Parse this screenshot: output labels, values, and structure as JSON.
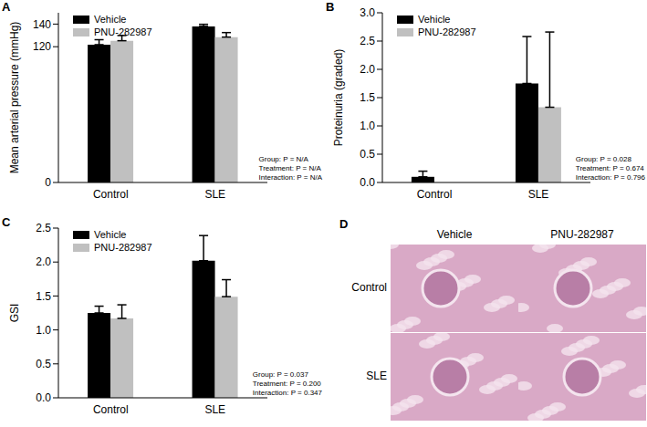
{
  "chart_data": [
    {
      "type": "bar",
      "panel_label": "A",
      "y_label": "Mean arterial pressure (mmHg)",
      "categories": [
        "Control",
        "SLE"
      ],
      "series": [
        {
          "name": "Vehicle",
          "color": "#000000",
          "values": [
            121.8,
            138.0
          ],
          "errors": [
            4.4,
            1.8
          ]
        },
        {
          "name": "PNU-282987",
          "color": "#c0c0c0",
          "values": [
            125.3,
            128.5
          ],
          "errors": [
            4.6,
            4.0
          ]
        }
      ],
      "ylim": [
        0,
        150
      ],
      "yticks": [
        0,
        120,
        140
      ],
      "annotations": [
        "Group: P = N/A",
        "Treatment: P = N/A",
        "Interaction: P = N/A"
      ]
    },
    {
      "type": "bar",
      "panel_label": "B",
      "y_label": "Proteinuria (graded)",
      "categories": [
        "Control",
        "SLE"
      ],
      "series": [
        {
          "name": "Vehicle",
          "color": "#000000",
          "values": [
            0.1,
            1.75
          ],
          "errors": [
            0.1,
            0.83
          ]
        },
        {
          "name": "PNU-282987",
          "color": "#c0c0c0",
          "values": [
            0,
            1.33
          ],
          "errors": [
            0,
            1.33
          ]
        }
      ],
      "ylim": [
        0,
        3
      ],
      "yticks": [
        {
          "value": 0,
          "label": "0.0"
        },
        0.5,
        {
          "value": 1,
          "label": "1.0"
        },
        1.5,
        {
          "value": 2,
          "label": "2.0"
        },
        2.5,
        {
          "value": 3,
          "label": "3.0"
        }
      ],
      "annotations": [
        "Group: P = 0.028",
        "Treatment: P = 0.674",
        "Interaction: P = 0.796"
      ]
    },
    {
      "type": "bar",
      "panel_label": "C",
      "y_label": "GSI",
      "categories": [
        "Control",
        "SLE"
      ],
      "series": [
        {
          "name": "Vehicle",
          "color": "#000000",
          "values": [
            1.25,
            2.02
          ],
          "errors": [
            0.1,
            0.37
          ]
        },
        {
          "name": "PNU-282987",
          "color": "#c0c0c0",
          "values": [
            1.17,
            1.49
          ],
          "errors": [
            0.2,
            0.25
          ]
        }
      ],
      "ylim": [
        0,
        2.5
      ],
      "yticks": [
        {
          "value": 0,
          "label": "0.0"
        },
        0.5,
        {
          "value": 1,
          "label": "1.0"
        },
        1.5,
        {
          "value": 2,
          "label": "2.0"
        },
        2.5
      ],
      "annotations": [
        "Group: P = 0.037",
        "Treatment: P = 0.200",
        "Interaction: P = 0.347"
      ]
    }
  ],
  "image_panel": {
    "panel_label": "D",
    "columns": [
      "Vehicle",
      "PNU-282987"
    ],
    "rows": [
      "Control",
      "SLE"
    ]
  }
}
